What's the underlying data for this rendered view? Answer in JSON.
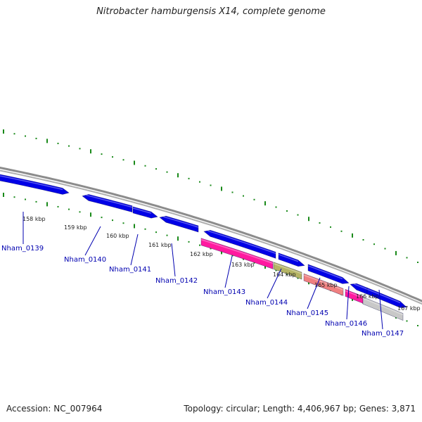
{
  "title": "Nitrobacter hamburgensis X14, complete genome",
  "accession": "Accession: NC_007964",
  "topology": "Topology: circular; Length: 4,406,967 bp; Genes: 3,871",
  "colors": {
    "backbone": "#8c8c8c",
    "tick": "#1a8a1a",
    "gene_blue": "#0000e6",
    "gene_magenta": "#ff1aa0",
    "gene_olive": "#b4b464",
    "gene_salmon": "#f08080",
    "gene_gray": "#c8c8c8",
    "label": "#0000b0"
  },
  "scale_labels": [
    "158 kbp",
    "159 kbp",
    "160 kbp",
    "161 kbp",
    "162 kbp",
    "163 kbp",
    "164 kbp",
    "165 kbp",
    "166 kbp",
    "167 kbp"
  ],
  "gene_labels": [
    "Nham_0139",
    "Nham_0140",
    "Nham_0141",
    "Nham_0142",
    "Nham_0143",
    "Nham_0144",
    "Nham_0145",
    "Nham_0146",
    "Nham_0147"
  ],
  "genes": [
    {
      "strand": "forward",
      "color": "gene_blue"
    },
    {
      "strand": "reverse",
      "color": "gene_blue"
    },
    {
      "strand": "forward",
      "color": "gene_blue"
    },
    {
      "strand": "reverse",
      "color": "gene_blue"
    },
    {
      "strand": "reverse",
      "color": "gene_blue"
    },
    {
      "strand": "forward",
      "color": "gene_blue"
    },
    {
      "strand": "forward",
      "color": "gene_blue"
    },
    {
      "strand": "reverse",
      "color": "gene_blue"
    },
    {
      "strand": "forward",
      "color": "gene_blue"
    },
    {
      "strand": "none",
      "color": "gene_magenta"
    },
    {
      "strand": "none",
      "color": "gene_olive"
    },
    {
      "strand": "none",
      "color": "gene_salmon"
    },
    {
      "strand": "none",
      "color": "gene_magenta"
    },
    {
      "strand": "none",
      "color": "gene_gray"
    }
  ]
}
